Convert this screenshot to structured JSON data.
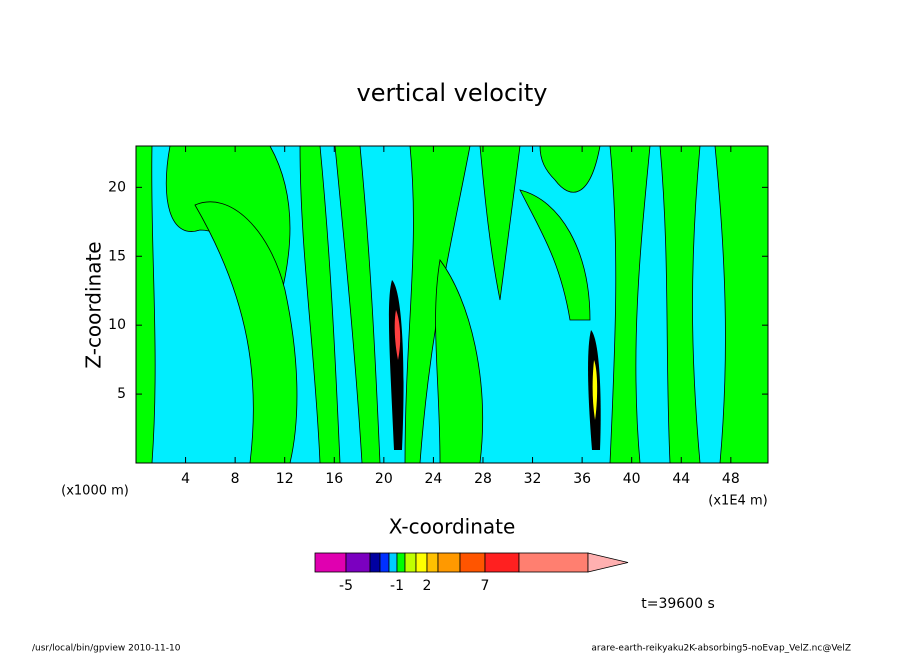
{
  "chart_data": {
    "type": "contour",
    "title": "vertical velocity",
    "xlabel": "X-coordinate",
    "ylabel": "Z-coordinate",
    "x_unit": "(x1000 m)",
    "x_unit2": "(x1E4 m)",
    "time_label": "t=39600 s",
    "footer_left": "/usr/local/bin/gpview  2010-11-10",
    "footer_right": "arare-earth-reikyaku2K-absorbing5-noEvap_VelZ.nc@VelZ",
    "xlim": [
      0,
      51
    ],
    "xticks": [
      4,
      8,
      12,
      16,
      20,
      24,
      28,
      32,
      36,
      40,
      44,
      48
    ],
    "ylim": [
      0,
      23
    ],
    "yticks": [
      5,
      10,
      15,
      20
    ],
    "colorbar": {
      "colors": [
        "#e000b0",
        "#7b00c0",
        "#0000a0",
        "#0030ff",
        "#00ccff",
        "#00ff00",
        "#c0ff00",
        "#ffff00",
        "#ffc000",
        "#ff9900",
        "#ff5500",
        "#ff2020",
        "#ff7f70",
        "#ffb0b0"
      ],
      "levels": [
        -5,
        null,
        null,
        null,
        -1,
        null,
        null,
        2,
        null,
        null,
        7,
        null
      ]
    }
  }
}
